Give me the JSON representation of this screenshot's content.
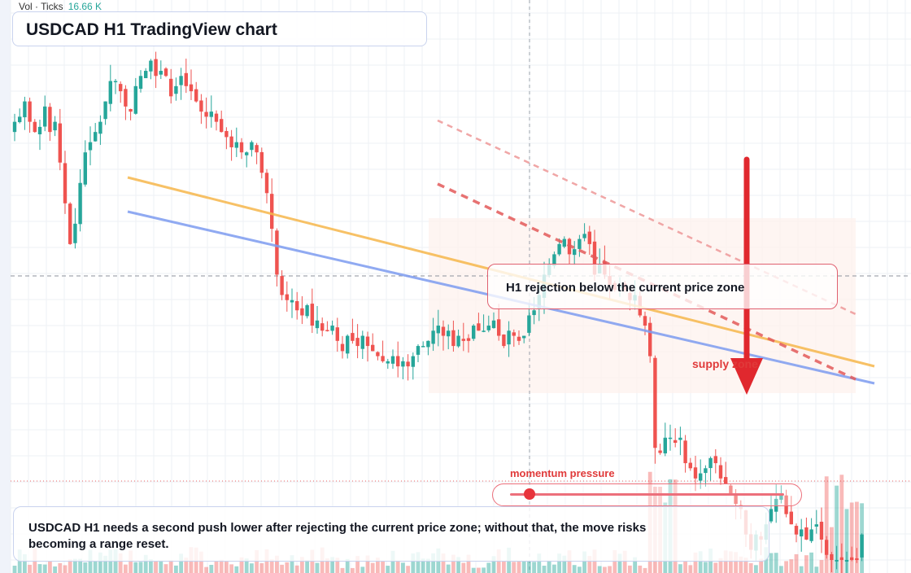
{
  "title": "USDCAD H1 TradingView chart",
  "volume": {
    "label": "Vol · Ticks",
    "value": "16.66 K"
  },
  "annotations": {
    "callout": "H1 rejection below the current price zone",
    "zone": "supply zone",
    "momentum_label": "momentum pressure",
    "momentum_level": 0.05,
    "summary": "USDCAD H1 needs a second push lower after rejecting the current price zone; without that, the move risks becoming a range reset."
  },
  "colors": {
    "up": "#26a69a",
    "down": "#ef5350",
    "trend_orange": "#f6b74c",
    "trend_blue": "#7d9cf0",
    "channel_red": "#e35a5a",
    "arrow": "#e0282e"
  },
  "icons": [
    "down-arrow-icon"
  ],
  "chart_data": {
    "type": "candlestick",
    "symbol": "USDCAD",
    "timeframe": "H1",
    "y_axis": {
      "range": [
        0,
        100
      ]
    },
    "current_price_line": 69.5,
    "grid": true,
    "note": "prices not printed on chart; normalized 0-100 scale",
    "close": [
      86,
      87,
      90,
      86,
      84,
      85,
      89,
      84,
      86,
      78,
      70,
      62,
      66,
      74,
      80,
      82,
      84,
      86,
      90,
      94,
      94,
      92,
      89,
      88,
      93,
      95,
      96,
      98,
      95,
      96,
      95,
      91,
      93,
      95,
      93,
      92,
      90,
      88,
      87,
      88,
      86,
      84,
      83,
      81,
      82,
      80,
      80,
      82,
      80,
      76,
      72,
      65,
      56,
      52,
      51,
      51,
      49,
      48,
      50,
      46,
      47,
      45,
      45,
      46,
      43,
      41,
      44,
      43,
      42,
      44,
      42,
      41,
      40,
      39,
      39,
      40,
      38,
      39,
      38,
      40,
      42,
      42,
      43,
      45,
      46,
      44,
      45,
      42,
      44,
      43,
      43,
      46,
      45,
      45,
      46,
      47,
      44,
      42,
      45,
      44,
      43,
      44,
      48,
      49,
      52,
      56,
      58,
      60,
      62,
      63,
      60,
      61,
      63,
      64,
      62,
      56,
      58,
      56,
      54,
      53,
      54,
      53,
      51,
      52,
      48,
      46,
      40,
      22,
      21,
      24,
      24,
      23,
      24,
      19,
      18,
      16,
      17,
      18,
      20,
      19,
      16,
      15,
      13,
      11,
      10,
      5,
      2,
      5,
      4,
      7,
      10,
      12,
      13,
      9,
      7,
      5,
      6,
      4,
      6,
      7,
      4,
      1,
      0,
      0,
      0,
      0,
      0,
      0,
      5
    ]
  }
}
